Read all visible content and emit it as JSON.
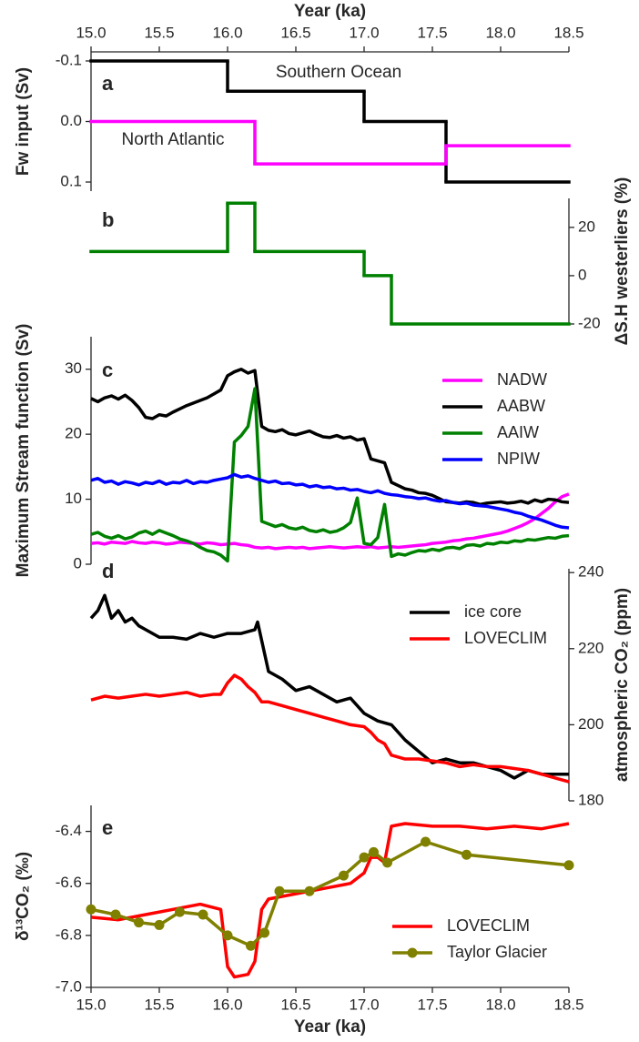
{
  "chart_data": [
    {
      "label": "a",
      "type": "step",
      "xaxis": "top",
      "xlabel": "Year (ka)",
      "xlim": [
        15,
        18.5
      ],
      "xticks": [
        {
          "value": 15,
          "label": "15.0"
        },
        15.5,
        {
          "value": 16,
          "label": "16.0"
        },
        16.5,
        {
          "value": 17,
          "label": "17.0"
        },
        17.5,
        {
          "value": 18,
          "label": "18.0"
        },
        18.5
      ],
      "ylabel": "Fw input (Sv)",
      "yaxis_side": "left",
      "ylim": [
        0.115,
        -0.115
      ],
      "yticks": [
        -0.1,
        {
          "value": 0,
          "label": "0.0"
        },
        0.1
      ],
      "legend": false,
      "series": [
        {
          "name": "Southern Ocean",
          "color": "#000000",
          "x": [
            15.0,
            16.0,
            17.0,
            17.6
          ],
          "values": [
            -0.1,
            -0.05,
            0,
            0.1
          ]
        },
        {
          "name": "North Atlantic",
          "color": "#ff00ff",
          "x": [
            15.0,
            16.2,
            17.6
          ],
          "values": [
            0,
            0.07,
            0.04
          ]
        }
      ]
    },
    {
      "label": "b",
      "type": "step",
      "xlim": [
        15,
        18.5
      ],
      "ylabel": "ΔS.H westerliers (%)",
      "yaxis_side": "right",
      "ylim": [
        -20,
        32
      ],
      "yticks": [
        -20,
        0,
        20
      ],
      "legend": false,
      "series": [
        {
          "color": "#008000",
          "x": [
            15.0,
            16.0,
            16.2,
            17.0,
            17.2
          ],
          "values": [
            10,
            30,
            10,
            0,
            -20
          ]
        }
      ]
    },
    {
      "label": "c",
      "type": "line",
      "xlim": [
        15,
        18.5
      ],
      "ylabel": "Maximum Stream function (Sv)",
      "yaxis_side": "left",
      "ylim": [
        0,
        35
      ],
      "yticks": [
        0,
        10,
        20,
        30
      ],
      "legend": "upper right",
      "x": [
        15.0,
        15.05,
        15.1,
        15.15,
        15.2,
        15.25,
        15.3,
        15.35,
        15.4,
        15.45,
        15.5,
        15.55,
        15.6,
        15.65,
        15.7,
        15.75,
        15.8,
        15.85,
        15.9,
        15.95,
        16.0,
        16.05,
        16.1,
        16.15,
        16.2,
        16.25,
        16.3,
        16.35,
        16.4,
        16.45,
        16.5,
        16.55,
        16.6,
        16.65,
        16.7,
        16.75,
        16.8,
        16.85,
        16.9,
        16.95,
        17.0,
        17.05,
        17.1,
        17.15,
        17.2,
        17.25,
        17.3,
        17.35,
        17.4,
        17.45,
        17.5,
        17.55,
        17.6,
        17.65,
        17.7,
        17.75,
        17.8,
        17.85,
        17.9,
        17.95,
        18.0,
        18.05,
        18.1,
        18.15,
        18.2,
        18.25,
        18.3,
        18.35,
        18.4,
        18.45,
        18.5
      ],
      "series": [
        {
          "name": "NADW",
          "color": "#ff00ff",
          "values": [
            3.2,
            3.3,
            3.1,
            3.4,
            3.3,
            3.2,
            3.5,
            3.3,
            3.2,
            3.4,
            3.3,
            3.1,
            3.2,
            3.4,
            3.3,
            3.2,
            3.1,
            3.3,
            3.2,
            3.0,
            3.1,
            3.2,
            3.0,
            2.9,
            2.6,
            2.5,
            2.6,
            2.4,
            2.5,
            2.6,
            2.5,
            2.6,
            2.4,
            2.5,
            2.6,
            2.7,
            2.6,
            2.5,
            2.6,
            2.7,
            2.6,
            2.7,
            2.5,
            2.6,
            2.7,
            2.6,
            2.7,
            2.8,
            2.9,
            3.0,
            3.2,
            3.3,
            3.4,
            3.6,
            3.7,
            3.9,
            4.0,
            4.2,
            4.4,
            4.6,
            4.8,
            5.1,
            5.5,
            5.9,
            6.4,
            7.0,
            7.8,
            8.6,
            9.6,
            10.4,
            10.8
          ]
        },
        {
          "name": "AABW",
          "color": "#000000",
          "values": [
            25.5,
            25.0,
            25.6,
            25.9,
            25.4,
            26.0,
            25.2,
            24.1,
            22.6,
            22.4,
            23.0,
            22.8,
            23.4,
            23.9,
            24.4,
            24.8,
            25.2,
            25.6,
            26.2,
            26.8,
            29.0,
            29.6,
            30.0,
            29.4,
            29.8,
            21.2,
            20.6,
            20.4,
            20.7,
            20.1,
            19.9,
            20.2,
            20.5,
            20.0,
            19.6,
            19.5,
            19.8,
            19.4,
            19.6,
            19.1,
            19.3,
            16.2,
            15.9,
            15.6,
            12.6,
            12.1,
            11.6,
            11.4,
            11.0,
            10.9,
            10.6,
            10.1,
            9.6,
            9.5,
            9.4,
            9.6,
            9.5,
            9.2,
            9.4,
            9.5,
            9.6,
            9.4,
            9.5,
            9.7,
            9.4,
            9.9,
            9.6,
            10.0,
            9.9,
            9.6,
            9.5
          ]
        },
        {
          "name": "AAIW",
          "color": "#008000",
          "values": [
            4.6,
            4.9,
            4.3,
            4.0,
            4.4,
            3.9,
            4.2,
            4.8,
            5.1,
            4.6,
            5.2,
            4.8,
            4.4,
            3.9,
            3.6,
            3.2,
            2.6,
            2.1,
            1.9,
            1.4,
            0.5,
            18.8,
            19.8,
            21.2,
            27.0,
            6.6,
            6.2,
            5.8,
            6.1,
            5.6,
            5.4,
            5.7,
            5.2,
            5.0,
            5.3,
            4.9,
            5.1,
            5.6,
            6.4,
            10.2,
            3.2,
            3.0,
            4.1,
            9.2,
            1.2,
            1.6,
            1.4,
            1.8,
            2.1,
            2.0,
            2.3,
            2.1,
            2.5,
            2.6,
            2.4,
            2.9,
            3.0,
            2.8,
            3.2,
            3.1,
            3.4,
            3.3,
            3.6,
            3.5,
            3.8,
            3.7,
            3.9,
            4.1,
            4.0,
            4.3,
            4.4
          ]
        },
        {
          "name": "NPIW",
          "color": "#0000ff",
          "values": [
            12.9,
            13.2,
            12.6,
            12.8,
            12.3,
            12.7,
            12.5,
            12.2,
            12.6,
            12.4,
            12.8,
            12.3,
            12.6,
            12.5,
            12.9,
            12.4,
            12.7,
            12.6,
            12.9,
            13.1,
            13.3,
            13.8,
            13.4,
            13.6,
            13.2,
            12.9,
            12.6,
            12.8,
            12.4,
            12.5,
            12.2,
            12.3,
            11.9,
            12.1,
            11.8,
            11.9,
            11.6,
            11.7,
            11.4,
            11.5,
            11.2,
            11.0,
            11.3,
            10.9,
            10.7,
            10.6,
            10.4,
            10.3,
            10.1,
            10.2,
            9.9,
            9.7,
            9.8,
            9.5,
            9.3,
            9.4,
            9.1,
            9.0,
            8.9,
            8.7,
            8.5,
            8.3,
            8.0,
            7.8,
            7.4,
            7.1,
            6.8,
            6.4,
            6.0,
            5.7,
            5.6
          ]
        }
      ]
    },
    {
      "label": "d",
      "type": "line",
      "xlim": [
        15,
        18.5
      ],
      "ylabel": "atmospheric CO₂ (ppm)",
      "yaxis_side": "right",
      "ylim": [
        180,
        241
      ],
      "yticks": [
        180,
        200,
        220,
        240
      ],
      "legend": "upper right",
      "series": [
        {
          "name": "ice core",
          "color": "#000000",
          "x": [
            15.0,
            15.05,
            15.1,
            15.15,
            15.2,
            15.25,
            15.3,
            15.35,
            15.4,
            15.5,
            15.6,
            15.7,
            15.8,
            15.9,
            16.0,
            16.1,
            16.2,
            16.22,
            16.3,
            16.4,
            16.5,
            16.6,
            16.7,
            16.8,
            16.9,
            17.0,
            17.1,
            17.2,
            17.3,
            17.4,
            17.5,
            17.6,
            17.7,
            17.8,
            17.9,
            18.0,
            18.1,
            18.2,
            18.3,
            18.5
          ],
          "values": [
            228,
            230,
            234,
            228,
            230,
            227,
            228,
            226,
            225,
            223,
            223,
            222.5,
            224,
            223,
            224,
            224,
            225,
            227,
            214,
            212,
            209,
            210,
            208,
            206,
            207,
            203,
            201,
            200,
            196,
            193,
            190,
            191,
            190,
            190,
            189,
            188,
            186,
            188,
            187,
            187
          ]
        },
        {
          "name": "LOVECLIM",
          "color": "#ff0000",
          "x": [
            15.0,
            15.1,
            15.2,
            15.3,
            15.4,
            15.5,
            15.6,
            15.7,
            15.8,
            15.9,
            15.95,
            16.0,
            16.05,
            16.1,
            16.15,
            16.2,
            16.25,
            16.3,
            16.4,
            16.5,
            16.6,
            16.7,
            16.8,
            16.9,
            17.0,
            17.05,
            17.1,
            17.15,
            17.2,
            17.3,
            17.4,
            17.5,
            17.6,
            17.7,
            17.8,
            17.9,
            18.0,
            18.1,
            18.2,
            18.3,
            18.4,
            18.5
          ],
          "values": [
            206.5,
            207.5,
            207,
            207.5,
            208,
            207.5,
            208,
            208.5,
            207.5,
            208,
            208,
            211,
            213,
            212,
            210,
            208.5,
            206,
            206,
            205,
            204,
            203,
            202,
            201,
            200,
            199.5,
            198,
            196,
            195,
            192,
            191,
            191,
            190.5,
            190,
            189,
            189.5,
            189,
            189,
            188.5,
            188,
            187,
            186,
            185
          ]
        }
      ]
    },
    {
      "label": "e",
      "type": "line",
      "xaxis": "bottom",
      "xlabel": "Year (ka)",
      "xlim": [
        15,
        18.5
      ],
      "xticks": [
        {
          "value": 15,
          "label": "15.0"
        },
        15.5,
        {
          "value": 16,
          "label": "16.0"
        },
        16.5,
        {
          "value": 17,
          "label": "17.0"
        },
        17.5,
        {
          "value": 18,
          "label": "18.0"
        },
        18.5
      ],
      "ylabel": "δ¹³CO₂ (‰)",
      "yaxis_side": "left",
      "ylim": [
        -7.0,
        -6.3
      ],
      "yticks": [
        {
          "value": -7,
          "label": "-7.0"
        },
        -6.8,
        -6.6,
        -6.4
      ],
      "legend": "lower right",
      "series": [
        {
          "name": "LOVECLIM",
          "color": "#ff0000",
          "x": [
            15.0,
            15.2,
            15.4,
            15.6,
            15.8,
            15.95,
            16.0,
            16.05,
            16.15,
            16.2,
            16.25,
            16.3,
            16.5,
            16.7,
            16.9,
            17.0,
            17.05,
            17.1,
            17.15,
            17.2,
            17.3,
            17.5,
            17.7,
            17.9,
            18.1,
            18.3,
            18.5
          ],
          "values": [
            -6.73,
            -6.74,
            -6.72,
            -6.7,
            -6.68,
            -6.7,
            -6.92,
            -6.96,
            -6.95,
            -6.9,
            -6.7,
            -6.66,
            -6.64,
            -6.62,
            -6.6,
            -6.56,
            -6.5,
            -6.5,
            -6.52,
            -6.38,
            -6.37,
            -6.38,
            -6.38,
            -6.39,
            -6.38,
            -6.39,
            -6.37
          ]
        },
        {
          "name": "Taylor Glacier",
          "color": "#808000",
          "marker": "o",
          "x": [
            15.0,
            15.18,
            15.35,
            15.5,
            15.65,
            15.82,
            16.0,
            16.17,
            16.27,
            16.38,
            16.6,
            16.85,
            17.0,
            17.07,
            17.17,
            17.45,
            17.75,
            18.5
          ],
          "values": [
            -6.7,
            -6.72,
            -6.75,
            -6.76,
            -6.71,
            -6.72,
            -6.8,
            -6.84,
            -6.79,
            -6.63,
            -6.63,
            -6.57,
            -6.5,
            -6.48,
            -6.52,
            -6.44,
            -6.49,
            -6.53
          ]
        }
      ]
    }
  ]
}
